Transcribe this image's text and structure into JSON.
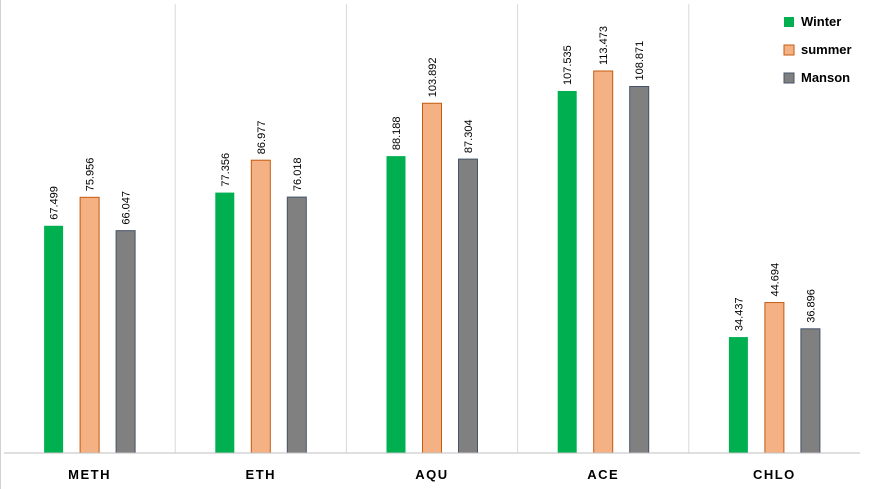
{
  "chart_data": {
    "type": "bar",
    "title": "",
    "xlabel": "",
    "ylabel": "",
    "categories": [
      "METH",
      "ETH",
      "AQU",
      "ACE",
      "CHLO"
    ],
    "series": [
      {
        "name": "Winter",
        "color": "#00b050",
        "values": [
          67.499,
          77.356,
          88.188,
          107.535,
          34.437
        ],
        "labels": [
          "67.499",
          "77.356",
          "88.188",
          "107.535",
          "34.437"
        ]
      },
      {
        "name": "summer",
        "color": "#f4b183",
        "values": [
          75.956,
          86.977,
          103.892,
          113.473,
          44.694
        ],
        "labels": [
          "75.956",
          "86.977",
          "103.892",
          "113.473",
          "44.694"
        ]
      },
      {
        "name": "Manson",
        "color": "#808080",
        "values": [
          66.047,
          76.018,
          87.304,
          108.871,
          36.896
        ],
        "labels": [
          "66.047",
          "76.018",
          "87.304",
          "108.871",
          "36.896"
        ]
      }
    ],
    "ylim": [
      0,
      113.473
    ],
    "grid": "vertical category separators",
    "legend": "top-right"
  }
}
